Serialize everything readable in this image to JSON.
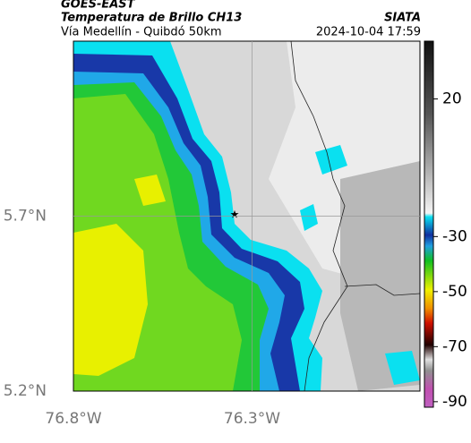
{
  "header": {
    "source": "GOES-EAST",
    "title": "Temperatura de Brillo CH13",
    "subtitle": "Vía Medellín - Quibdó 50km",
    "org": "SIATA",
    "timestamp": "2024-10-04 17:59"
  },
  "map": {
    "xlim": [
      -76.8,
      -75.83
    ],
    "ylim": [
      5.2,
      6.2
    ],
    "xticks": [
      {
        "value": -76.8,
        "label": "76.8°W"
      },
      {
        "value": -76.3,
        "label": "76.3°W"
      }
    ],
    "yticks": [
      {
        "value": 5.2,
        "label": "5.2°N"
      },
      {
        "value": 5.7,
        "label": "5.7°N"
      }
    ],
    "grid": true
  },
  "colorbar": {
    "lim": [
      -92,
      41
    ],
    "ticks": [
      20,
      -30,
      -50,
      -70,
      -90
    ]
  }
}
